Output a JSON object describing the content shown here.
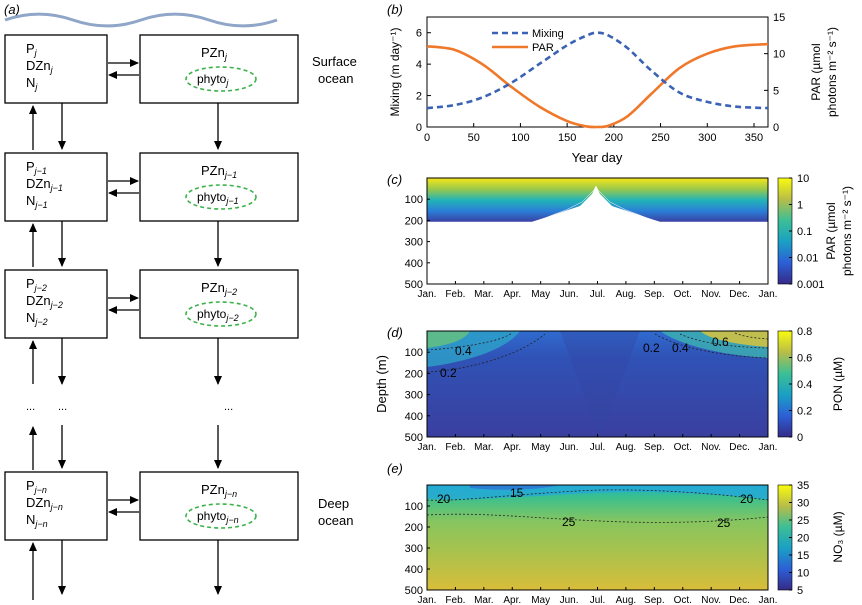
{
  "figure": {
    "panels": [
      "(a)",
      "(b)",
      "(c)",
      "(d)",
      "(e)"
    ]
  },
  "diagram": {
    "surface_label": [
      "Surface",
      "ocean"
    ],
    "deep_label": [
      "Deep",
      "ocean"
    ],
    "ellipsis": "...",
    "levels": [
      {
        "left": [
          {
            "main": "P",
            "sub": "j"
          },
          {
            "main": "DZn",
            "sub": "j"
          },
          {
            "main": "N",
            "sub": "j"
          }
        ],
        "right_main": "PZn",
        "phyto_main": "phyto",
        "sub": "j"
      },
      {
        "left": [
          {
            "main": "P",
            "sub": "j−1"
          },
          {
            "main": "DZn",
            "sub": "j−1"
          },
          {
            "main": "N",
            "sub": "j−1"
          }
        ],
        "right_main": "PZn",
        "phyto_main": "phyto",
        "sub": "j−1"
      },
      {
        "left": [
          {
            "main": "P",
            "sub": "j−2"
          },
          {
            "main": "DZn",
            "sub": "j−2"
          },
          {
            "main": "N",
            "sub": "j−2"
          }
        ],
        "right_main": "PZn",
        "phyto_main": "phyto",
        "sub": "j−2"
      },
      {
        "left": [
          {
            "main": "P",
            "sub": "j−n"
          },
          {
            "main": "DZn",
            "sub": "j−n"
          },
          {
            "main": "N",
            "sub": "j−n"
          }
        ],
        "right_main": "PZn",
        "phyto_main": "phyto",
        "sub": "j−n"
      }
    ]
  },
  "chart_data": [
    {
      "panel": "(b)",
      "type": "line",
      "xlabel": "Year day",
      "ylabel_left": "Mixing (m day⁻¹)",
      "ylabel_right": [
        "PAR (µmol",
        "photons m⁻² s⁻¹)"
      ],
      "xlim": [
        0,
        365
      ],
      "x_ticks": [
        "0",
        "50",
        "100",
        "150",
        "200",
        "250",
        "300",
        "350"
      ],
      "ylim_left": [
        0,
        7
      ],
      "y_ticks_left": [
        "0",
        "2",
        "4",
        "6"
      ],
      "ylim_right": [
        0,
        15
      ],
      "y_ticks_right": [
        "0",
        "5",
        "10",
        "15"
      ],
      "legend": [
        "Mixing",
        "PAR"
      ],
      "colors": {
        "mixing": "#3a62b5",
        "par": "#f0782a"
      },
      "series": [
        {
          "name": "Mixing",
          "axis": "left",
          "x": [
            0,
            30,
            60,
            90,
            120,
            150,
            170,
            182,
            195,
            215,
            240,
            270,
            300,
            330,
            365
          ],
          "y": [
            1.2,
            1.4,
            1.9,
            2.8,
            4.0,
            5.2,
            5.8,
            6.0,
            5.8,
            5.0,
            3.6,
            2.2,
            1.6,
            1.3,
            1.2
          ]
        },
        {
          "name": "PAR",
          "axis": "right",
          "x": [
            0,
            30,
            60,
            90,
            120,
            150,
            170,
            182,
            195,
            215,
            240,
            270,
            300,
            330,
            365
          ],
          "y": [
            11.0,
            10.5,
            8.5,
            5.5,
            2.8,
            0.8,
            0.1,
            0.0,
            0.2,
            1.5,
            4.5,
            8.0,
            10.0,
            11.0,
            11.3
          ]
        }
      ]
    },
    {
      "panel": "(c)",
      "type": "heatmap",
      "months": [
        "Jan.",
        "Feb.",
        "Mar.",
        "Apr.",
        "May",
        "Jun.",
        "Jul.",
        "Aug.",
        "Sep.",
        "Oct.",
        "Nov.",
        "Dec.",
        "Jan."
      ],
      "y_ticks": [
        "100",
        "200",
        "300",
        "400",
        "500"
      ],
      "colorbar_label": [
        "PAR (µmol",
        "photons m⁻² s⁻¹)"
      ],
      "colorbar_ticks": [
        "10",
        "1",
        "0.1",
        "0.01",
        "0.001"
      ]
    },
    {
      "panel": "(d)",
      "type": "heatmap",
      "months": [
        "Jan.",
        "Feb.",
        "Mar.",
        "Apr.",
        "May",
        "Jun.",
        "Jul.",
        "Aug.",
        "Sep.",
        "Oct.",
        "Nov.",
        "Dec.",
        "Jan."
      ],
      "ylabel": "Depth (m)",
      "y_ticks": [
        "100",
        "200",
        "300",
        "400",
        "500"
      ],
      "colorbar_label": "PON (µM)",
      "colorbar_ticks": [
        "0.8",
        "0.6",
        "0.4",
        "0.2",
        "0"
      ],
      "contour_labels": [
        "0.4",
        "0.2",
        "0.2",
        "0.4",
        "0.6"
      ]
    },
    {
      "panel": "(e)",
      "type": "heatmap",
      "months": [
        "Jan.",
        "Feb.",
        "Mar.",
        "Apr.",
        "May",
        "Jun.",
        "Jul.",
        "Aug.",
        "Sep.",
        "Oct.",
        "Nov.",
        "Dec.",
        "Jan."
      ],
      "y_ticks": [
        "100",
        "200",
        "300",
        "400",
        "500"
      ],
      "colorbar_label": "NO₃ (µM)",
      "colorbar_ticks": [
        "35",
        "30",
        "25",
        "20",
        "15",
        "10",
        "5"
      ],
      "contour_labels": [
        "20",
        "15",
        "25",
        "25",
        "20"
      ]
    }
  ]
}
